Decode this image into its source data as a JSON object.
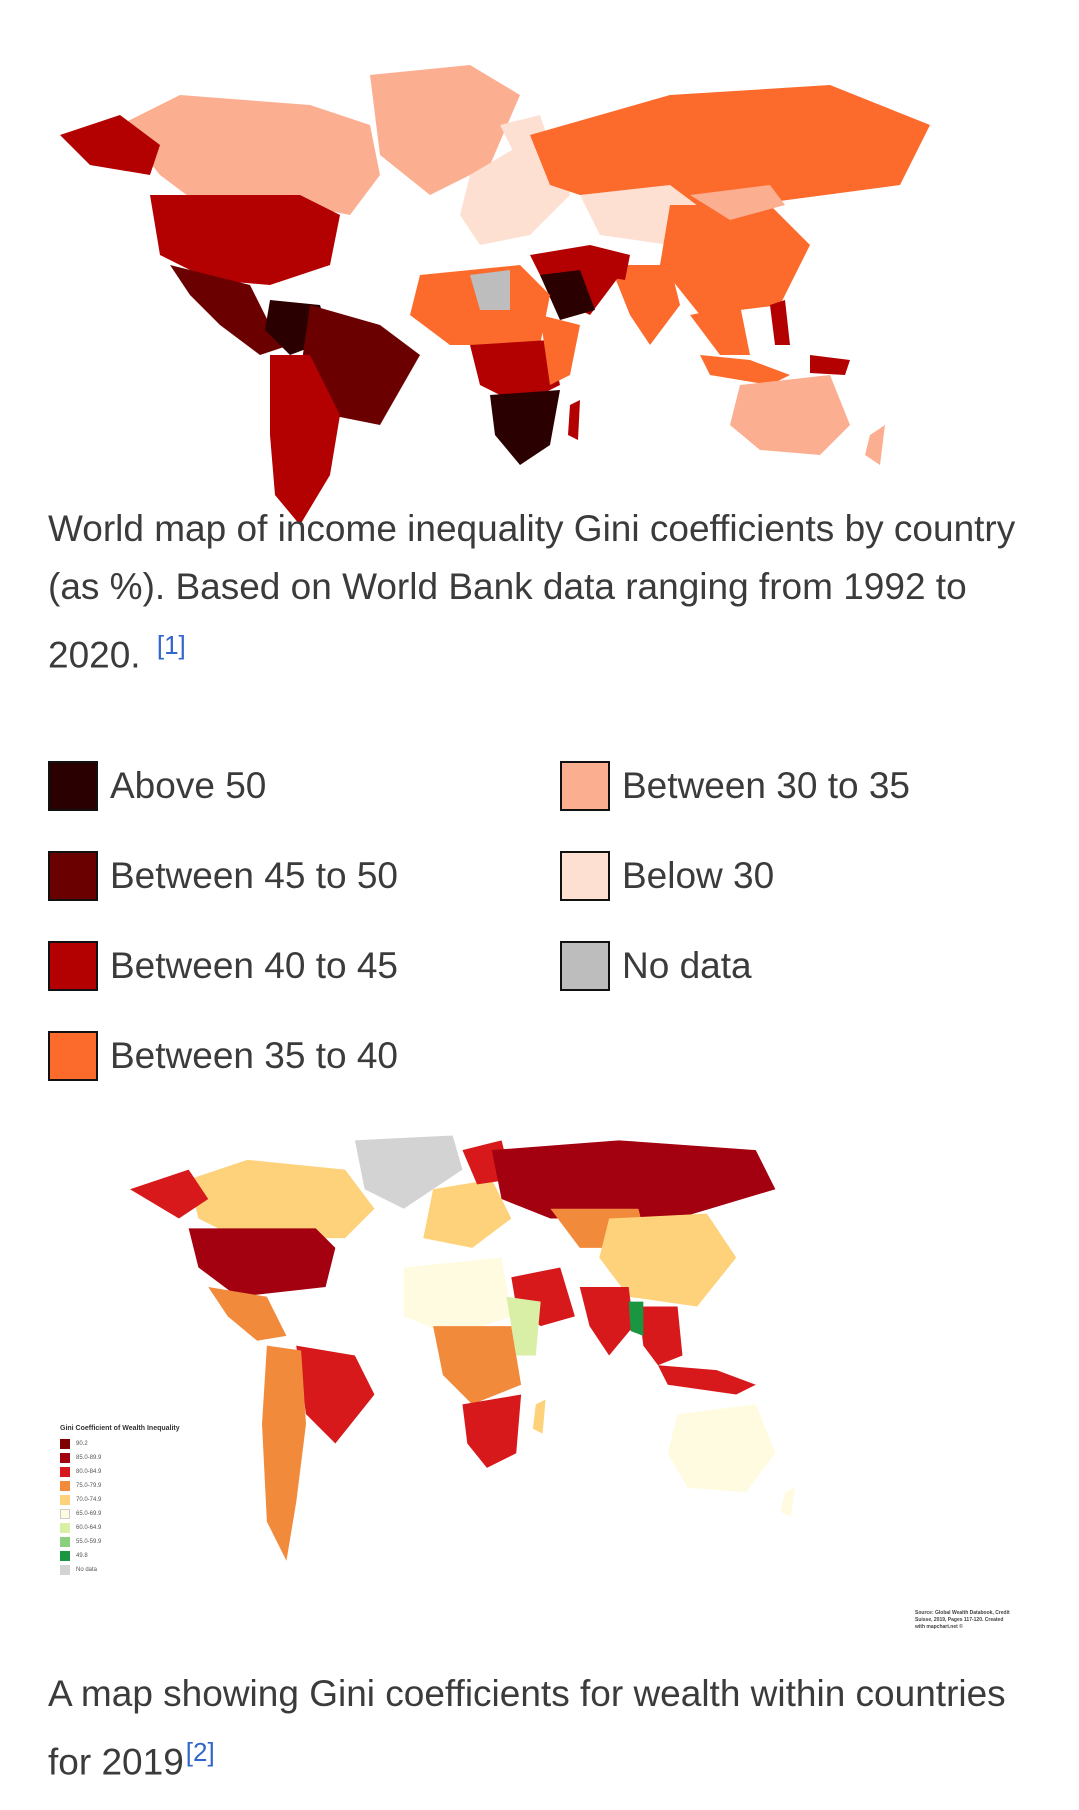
{
  "map1": {
    "colors": {
      "above50": "#2b0000",
      "45to50": "#6b0000",
      "40to45": "#b30000",
      "35to40": "#fc6a2c",
      "30to35": "#fcae91",
      "below30": "#fee0d2",
      "nodata": "#bdbdbd"
    }
  },
  "caption1": {
    "text": "World map of income inequality Gini coefficients by country (as %). Based on World Bank data ranging from 1992 to 2020.",
    "ref": "[1]"
  },
  "legend": [
    {
      "label": "Above 50",
      "color": "#2b0000"
    },
    {
      "label": "Between 45 to 50",
      "color": "#6b0000"
    },
    {
      "label": "Between 40 to 45",
      "color": "#b30000"
    },
    {
      "label": "Between 35 to 40",
      "color": "#fc6a2c"
    },
    {
      "label": "Between 30 to 35",
      "color": "#fcae91"
    },
    {
      "label": "Below 30",
      "color": "#fee0d2"
    },
    {
      "label": "No data",
      "color": "#bdbdbd"
    }
  ],
  "map2": {
    "inset_legend_title": "Gini Coefficient of Wealth Inequality",
    "inset_legend": [
      {
        "label": "90.2",
        "color": "#7f0000"
      },
      {
        "label": "85.0-89.9",
        "color": "#a30010"
      },
      {
        "label": "80.0-84.9",
        "color": "#d7191c"
      },
      {
        "label": "75.0-79.9",
        "color": "#f28a3c"
      },
      {
        "label": "70.0-74.9",
        "color": "#fdd27a"
      },
      {
        "label": "65.0-69.9",
        "color": "#fffbe0"
      },
      {
        "label": "60.0-64.9",
        "color": "#d9efa5"
      },
      {
        "label": "55.0-59.9",
        "color": "#8ccf7e"
      },
      {
        "label": "49.8",
        "color": "#1a9641"
      },
      {
        "label": "No data",
        "color": "#d3d3d3"
      }
    ],
    "source_note": "Source: Global Wealth Databook, Credit Suisse, 2019, Pages 117-120. Created with mapchart.net ©"
  },
  "caption2": {
    "text": "A map showing Gini coefficients for wealth within countries for 2019",
    "ref": "[2]"
  }
}
